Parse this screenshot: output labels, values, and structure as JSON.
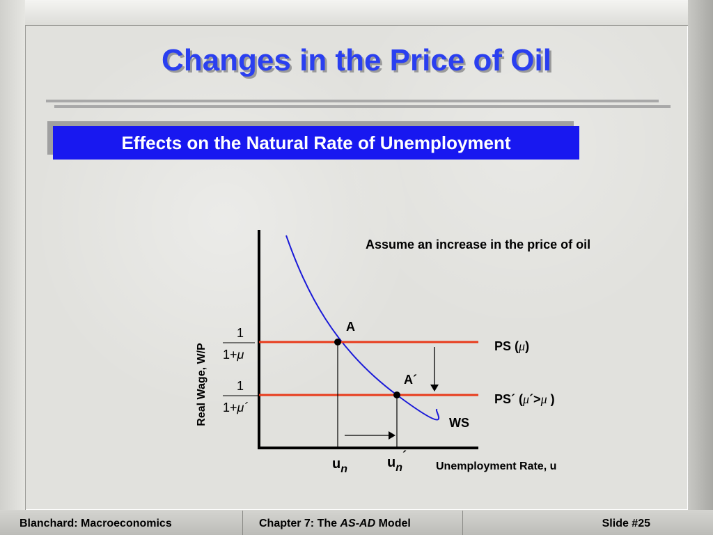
{
  "slide": {
    "title": "Changes in the Price of Oil",
    "subtitle": "Effects on the Natural Rate of Unemployment"
  },
  "diagram": {
    "note": "Assume an increase in the price of oil",
    "y_axis_label": "Real Wage, W/P",
    "x_axis_label": "Unemployment Rate, u",
    "frac1_num": "1",
    "frac1_den_prefix": "1+",
    "frac1_den_mu": "μ",
    "frac2_num": "1",
    "frac2_den_prefix": "1+",
    "frac2_den_mu": "μ´",
    "point_a": "A",
    "point_a_prime": "A´",
    "ps_label": "PS (",
    "ps_mu": "μ",
    "ps_close": ")",
    "ps_prime_label": "PS´ (",
    "ps_prime_mu1": "μ",
    "ps_prime_mid": "´>",
    "ps_prime_mu2": "μ",
    "ps_prime_close": " )",
    "ws_label": "WS",
    "un_u": "u",
    "un_n": "n",
    "un_prime_u": "u",
    "un_prime_n": "n",
    "un_prime_mark": "´",
    "colors": {
      "ws_curve": "#1a1ad8",
      "ps_lines": "#e83a1a",
      "axes": "#000000"
    }
  },
  "footer": {
    "left": "Blanchard: Macroeconomics",
    "center_prefix": "Chapter 7: The ",
    "center_italic": "AS-AD",
    "center_suffix": " Model",
    "right": "Slide #25"
  }
}
